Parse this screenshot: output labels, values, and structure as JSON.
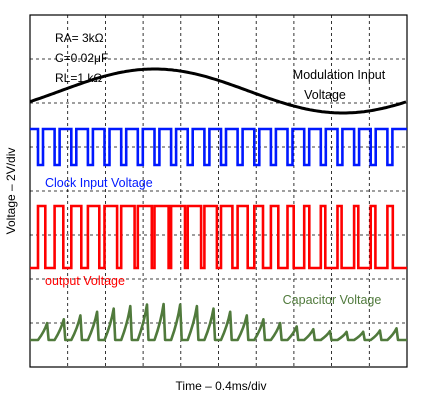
{
  "chart_data": {
    "type": "line",
    "title": "",
    "xlabel": "Time – 0.4ms/div",
    "ylabel": "Voltage – 2V/div",
    "grid": true,
    "grid_divisions": {
      "x": 10,
      "y": 8
    },
    "parameters": [
      "RA= 3kΩ",
      "C=0.02μF",
      "RL=1 kΩ"
    ],
    "series": [
      {
        "name": "Modulation Input Voltage",
        "name_lines": [
          "Modulation Input",
          "Voltage"
        ],
        "color": "#000000",
        "shape": "sine",
        "cycles": 1
      },
      {
        "name": "Clock Input Voltage",
        "color": "#0018ff",
        "shape": "pulse-train",
        "pulses": 22
      },
      {
        "name": "output Voltage",
        "color": "#ff0000",
        "shape": "pulse-width-modulated",
        "pulses": 22
      },
      {
        "name": "Capacitor Voltage",
        "color": "#507a3c",
        "shape": "sawtooth-spikes",
        "pulses": 22
      }
    ]
  }
}
